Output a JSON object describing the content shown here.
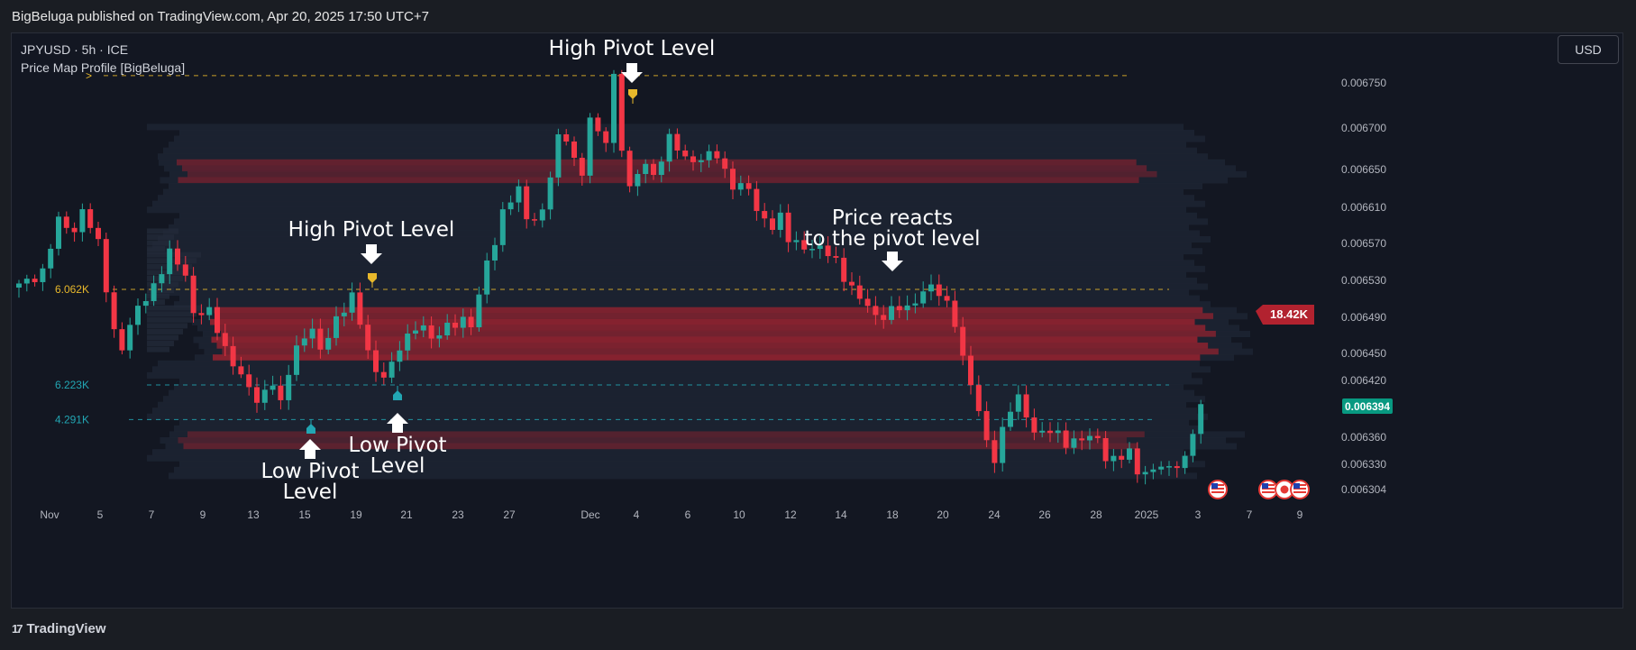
{
  "header": {
    "published": "BigBeluga published on TradingView.com, Apr 20, 2025 17:50 UTC+7"
  },
  "chart_header": {
    "symbol": "JPYUSD · 5h · ICE",
    "indicator": "Price Map Profile [BigBeluga]",
    "currency_button": "USD"
  },
  "footer": {
    "logo_text": "TradingView",
    "logo_mark": "17"
  },
  "colors": {
    "background": "#131722",
    "up": "#26a69a",
    "down": "#f23645",
    "profile_dark": "#1d2533",
    "profile_hot": "#b2222f",
    "pivot_high": "#e8b82b",
    "pivot_low": "#22a6b3"
  },
  "chart_data": {
    "type": "candlestick",
    "symbol": "JPYUSD",
    "timeframe": "5h",
    "exchange": "ICE",
    "x_tick_labels": [
      "Nov",
      "5",
      "7",
      "9",
      "13",
      "15",
      "19",
      "21",
      "23",
      "27",
      "Dec",
      "4",
      "6",
      "10",
      "12",
      "14",
      "18",
      "20",
      "24",
      "26",
      "28",
      "2025",
      "3",
      "7",
      "9"
    ],
    "y_tick_labels": [
      "0.006750",
      "0.006700",
      "0.006650",
      "0.006610",
      "0.006570",
      "0.006530",
      "0.006490",
      "0.006450",
      "0.006420",
      "0.006360",
      "0.006330",
      "0.006304"
    ],
    "current_price": "0.006394",
    "poc_label": "18.42K",
    "levels": [
      {
        "name": "high-pivot-level-top",
        "price": 0.006758,
        "label": ">",
        "color": "#e8b82b"
      },
      {
        "name": "high-pivot-level-mid",
        "price": 0.006523,
        "label": "6.062K",
        "color": "#e8b82b"
      },
      {
        "name": "low-pivot-level-upper",
        "price": 0.006418,
        "label": "6.223K",
        "color": "#22a6b3"
      },
      {
        "name": "low-pivot-level-lower",
        "price": 0.00638,
        "label": "4.291K",
        "color": "#22a6b3"
      }
    ],
    "annotations": [
      {
        "name": "high-pivot-annotation-top",
        "lines": [
          "High Pivot Level"
        ]
      },
      {
        "name": "high-pivot-annotation-mid",
        "lines": [
          "High Pivot Level"
        ]
      },
      {
        "name": "price-reacts-annotation",
        "lines": [
          "Price reacts",
          "to the pivot level"
        ]
      },
      {
        "name": "low-pivot-annotation-left",
        "lines": [
          "Low Pivot",
          "Level"
        ]
      },
      {
        "name": "low-pivot-annotation-right",
        "lines": [
          "Low Pivot",
          "Level"
        ]
      }
    ],
    "price_path": [
      [
        0,
        0.006525
      ],
      [
        3,
        0.006545
      ],
      [
        5,
        0.006595
      ],
      [
        7,
        0.00659
      ],
      [
        8,
        0.006612
      ],
      [
        10,
        0.00657
      ],
      [
        12,
        0.00648
      ],
      [
        13,
        0.00646
      ],
      [
        15,
        0.0065
      ],
      [
        17,
        0.00653
      ],
      [
        19,
        0.00656
      ],
      [
        21,
        0.00654
      ],
      [
        22,
        0.0065
      ],
      [
        24,
        0.006495
      ],
      [
        26,
        0.00646
      ],
      [
        27,
        0.006445
      ],
      [
        29,
        0.00641
      ],
      [
        30,
        0.0064
      ],
      [
        32,
        0.006425
      ],
      [
        33,
        0.006395
      ],
      [
        35,
        0.00646
      ],
      [
        37,
        0.006485
      ],
      [
        38,
        0.00645
      ],
      [
        40,
        0.00649
      ],
      [
        42,
        0.00652
      ],
      [
        43,
        0.00648
      ],
      [
        44,
        0.006455
      ],
      [
        45,
        0.00643
      ],
      [
        47,
        0.00644
      ],
      [
        49,
        0.00647
      ],
      [
        51,
        0.00649
      ],
      [
        52,
        0.006465
      ],
      [
        54,
        0.00648
      ],
      [
        56,
        0.006495
      ],
      [
        57,
        0.00648
      ],
      [
        59,
        0.00655
      ],
      [
        61,
        0.00661
      ],
      [
        63,
        0.00663
      ],
      [
        64,
        0.0066
      ],
      [
        66,
        0.00661
      ],
      [
        68,
        0.006685
      ],
      [
        69,
        0.00669
      ],
      [
        71,
        0.00665
      ],
      [
        72,
        0.00671
      ],
      [
        73,
        0.00669
      ],
      [
        74,
        0.00669
      ],
      [
        75,
        0.00676
      ],
      [
        76,
        0.00668
      ],
      [
        77,
        0.00663
      ],
      [
        79,
        0.006665
      ],
      [
        80,
        0.00665
      ],
      [
        82,
        0.006685
      ],
      [
        84,
        0.00667
      ],
      [
        86,
        0.006665
      ],
      [
        88,
        0.00667
      ],
      [
        90,
        0.00664
      ],
      [
        92,
        0.00663
      ],
      [
        93,
        0.00661
      ],
      [
        95,
        0.006595
      ],
      [
        96,
        0.0066
      ],
      [
        97,
        0.006575
      ],
      [
        98,
        0.006575
      ],
      [
        100,
        0.00657
      ],
      [
        101,
        0.006565
      ],
      [
        103,
        0.006555
      ],
      [
        104,
        0.00654
      ],
      [
        106,
        0.00651
      ],
      [
        108,
        0.006495
      ],
      [
        110,
        0.0065
      ],
      [
        112,
        0.0065
      ],
      [
        114,
        0.006525
      ],
      [
        115,
        0.006525
      ],
      [
        117,
        0.006505
      ],
      [
        118,
        0.00649
      ],
      [
        119,
        0.00645
      ],
      [
        121,
        0.006385
      ],
      [
        122,
        0.006355
      ],
      [
        123,
        0.00634
      ],
      [
        124,
        0.00637
      ],
      [
        125,
        0.00639
      ],
      [
        126,
        0.0064
      ],
      [
        127,
        0.006385
      ],
      [
        128,
        0.00637
      ],
      [
        130,
        0.006365
      ],
      [
        132,
        0.006355
      ],
      [
        133,
        0.00636
      ],
      [
        134,
        0.00636
      ],
      [
        136,
        0.006355
      ],
      [
        137,
        0.00634
      ],
      [
        139,
        0.00634
      ],
      [
        140,
        0.00634
      ],
      [
        141,
        0.00632
      ],
      [
        142,
        0.006325
      ],
      [
        144,
        0.00633
      ],
      [
        145,
        0.00632
      ],
      [
        147,
        0.00634
      ],
      [
        148,
        0.00637
      ],
      [
        149,
        0.006394
      ]
    ],
    "profile_hot_zones": [
      {
        "from": 0.006645,
        "to": 0.006665,
        "intensity": 0.5
      },
      {
        "from": 0.006455,
        "to": 0.006505,
        "intensity": 1.0
      },
      {
        "from": 0.006355,
        "to": 0.006365,
        "intensity": 0.4
      }
    ]
  }
}
